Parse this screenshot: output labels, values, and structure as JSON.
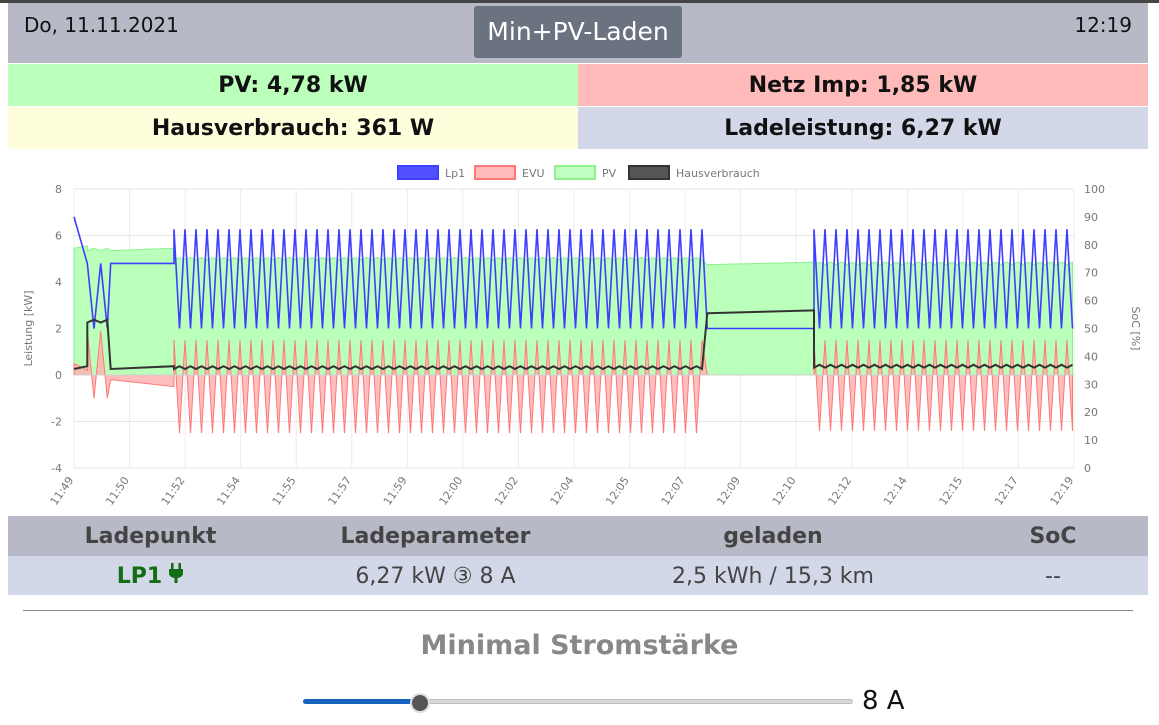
{
  "header": {
    "date": "Do, 11.11.2021",
    "time": "12:19",
    "mode_button": "Min+PV-Laden"
  },
  "tiles": {
    "pv": "PV: 4,78 kW",
    "netz": "Netz Imp: 1,85 kW",
    "hausverbrauch": "Hausverbrauch: 361 W",
    "ladeleistung": "Ladeleistung: 6,27 kW"
  },
  "colors": {
    "pv_tile": "#baffba",
    "netz_tile": "#ffbaba",
    "haus_tile": "#fefedd",
    "lade_tile": "#d2d8e8",
    "header": "#b7bac6",
    "accent": "#1565c0"
  },
  "chart_data": {
    "type": "line",
    "title": "",
    "xlabel": "",
    "ylabel": "Leistung [kW]",
    "y2label": "SoC [%]",
    "ylim": [
      -4,
      8
    ],
    "y2lim": [
      0,
      100
    ],
    "yticks": [
      "8",
      "6",
      "4",
      "2",
      "0",
      "-2",
      "-4"
    ],
    "y2ticks": [
      "100",
      "90",
      "80",
      "70",
      "60",
      "50",
      "40",
      "30",
      "20",
      "10",
      "0"
    ],
    "xticks": [
      "11:49",
      "11:50",
      "11:52",
      "11:54",
      "11:55",
      "11:57",
      "11:59",
      "12:00",
      "12:02",
      "12:04",
      "12:05",
      "12:07",
      "12:09",
      "12:10",
      "12:12",
      "12:14",
      "12:15",
      "12:17",
      "12:19"
    ],
    "legend_position": "top",
    "legend": [
      {
        "name": "Lp1",
        "color": "#3e3eff",
        "fill": "#3e3eff"
      },
      {
        "name": "EVU",
        "color": "#ff7777",
        "fill": "#ffb3b3"
      },
      {
        "name": "PV",
        "color": "#8ff08f",
        "fill": "#baffba"
      },
      {
        "name": "Hausverbrauch",
        "color": "#333333",
        "fill": "#444444"
      }
    ],
    "grid": true,
    "x_range_min": [
      0,
      30
    ],
    "segments": [
      {
        "from": 0.0,
        "to": 0.4,
        "lp1": [
          6.8,
          4.8
        ],
        "evu": [
          0.5,
          0.2
        ],
        "pv": 5.5,
        "haus": 0.3
      },
      {
        "from": 0.4,
        "to": 1.1,
        "lp1": [
          4.8,
          2.0
        ],
        "evu": [
          1.9,
          -1.0
        ],
        "pv": 5.4,
        "haus": 2.3,
        "osc_period": 0.4
      },
      {
        "from": 1.1,
        "to": 3.0,
        "lp1": [
          4.8,
          4.8
        ],
        "evu": [
          -0.2,
          -0.5
        ],
        "pv": 5.4,
        "haus": 0.3
      },
      {
        "from": 3.0,
        "to": 19.0,
        "lp1": [
          6.27,
          2.0
        ],
        "evu": [
          1.5,
          -2.5
        ],
        "pv": 5.0,
        "haus": 0.3,
        "osc_period": 0.33
      },
      {
        "from": 19.0,
        "to": 22.2,
        "lp1": [
          2.0,
          2.0
        ],
        "evu": [
          0.0,
          0.0
        ],
        "pv": 4.8,
        "haus": 2.7
      },
      {
        "from": 22.2,
        "to": 30.0,
        "lp1": [
          6.27,
          2.0
        ],
        "evu": [
          1.5,
          -2.4
        ],
        "pv": 4.8,
        "haus": 0.36,
        "osc_period": 0.33
      }
    ]
  },
  "table": {
    "headers": [
      "Ladepunkt",
      "Ladeparameter",
      "geladen",
      "SoC"
    ],
    "rows": [
      {
        "ladepunkt": "LP1",
        "ladeparameter": "6,27 kW ③ 8 A",
        "geladen": "2,5 kWh / 15,3 km",
        "soc": "--",
        "icon": "plug-icon"
      }
    ]
  },
  "section": {
    "title": "Minimal Stromstärke"
  },
  "slider": {
    "value_label": "8 A",
    "fraction": 0.21
  }
}
